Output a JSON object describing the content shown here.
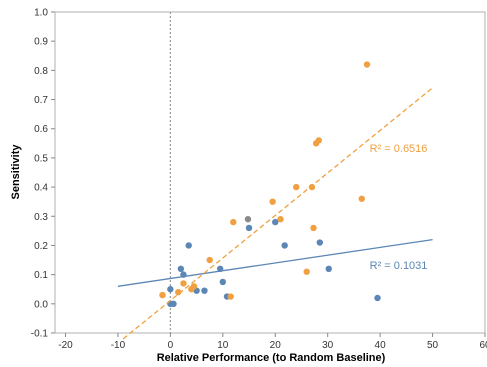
{
  "chart_data": {
    "type": "scatter",
    "xlabel": "Relative Performance (to Random Baseline)",
    "ylabel": "Sensitivity",
    "xlim": [
      -22,
      60
    ],
    "ylim": [
      -0.1,
      1.0
    ],
    "xticks": [
      -20,
      -10,
      0,
      10,
      20,
      30,
      40,
      50,
      60
    ],
    "yticks": [
      -0.1,
      0.0,
      0.1,
      0.2,
      0.3,
      0.4,
      0.5,
      0.6,
      0.7,
      0.8,
      0.9,
      1.0
    ],
    "grid": false,
    "reference_line": {
      "x": 0,
      "style": "dotted"
    },
    "series": [
      {
        "color": "#5b86b5",
        "points": [
          [
            0,
            0.05
          ],
          [
            0,
            0.0
          ],
          [
            0.6,
            0.0
          ],
          [
            2,
            0.12
          ],
          [
            2.5,
            0.1
          ],
          [
            3.5,
            0.2
          ],
          [
            5,
            0.045
          ],
          [
            6.5,
            0.045
          ],
          [
            9.5,
            0.12
          ],
          [
            10,
            0.075
          ],
          [
            10.8,
            0.025
          ],
          [
            15,
            0.26
          ],
          [
            20,
            0.28
          ],
          [
            21.8,
            0.2
          ],
          [
            28.5,
            0.21
          ],
          [
            30.2,
            0.12
          ],
          [
            39.5,
            0.02
          ]
        ],
        "fit": {
          "x": [
            -10,
            50
          ],
          "y": [
            0.06,
            0.22
          ]
        },
        "annotation": {
          "text": "R² = 0.1031",
          "x": 38,
          "y": 0.12
        }
      },
      {
        "color": "#f0a040",
        "points": [
          [
            -1.5,
            0.03
          ],
          [
            1.5,
            0.04
          ],
          [
            2.5,
            0.07
          ],
          [
            4,
            0.05
          ],
          [
            4.5,
            0.06
          ],
          [
            7.5,
            0.15
          ],
          [
            11.5,
            0.025
          ],
          [
            12,
            0.28
          ],
          [
            19.5,
            0.35
          ],
          [
            21,
            0.29
          ],
          [
            24,
            0.4
          ],
          [
            26,
            0.11
          ],
          [
            27,
            0.4
          ],
          [
            27.3,
            0.26
          ],
          [
            27.8,
            0.55
          ],
          [
            28.3,
            0.56
          ],
          [
            36.5,
            0.36
          ],
          [
            37.5,
            0.82
          ]
        ],
        "fit": {
          "x": [
            -9,
            50
          ],
          "y": [
            -0.12,
            0.74
          ]
        },
        "annotation": {
          "text": "R² = 0.6516",
          "x": 38,
          "y": 0.52
        }
      }
    ],
    "overlap_points": {
      "color": "#8a8a8a",
      "points": [
        [
          14.8,
          0.29
        ]
      ]
    }
  }
}
